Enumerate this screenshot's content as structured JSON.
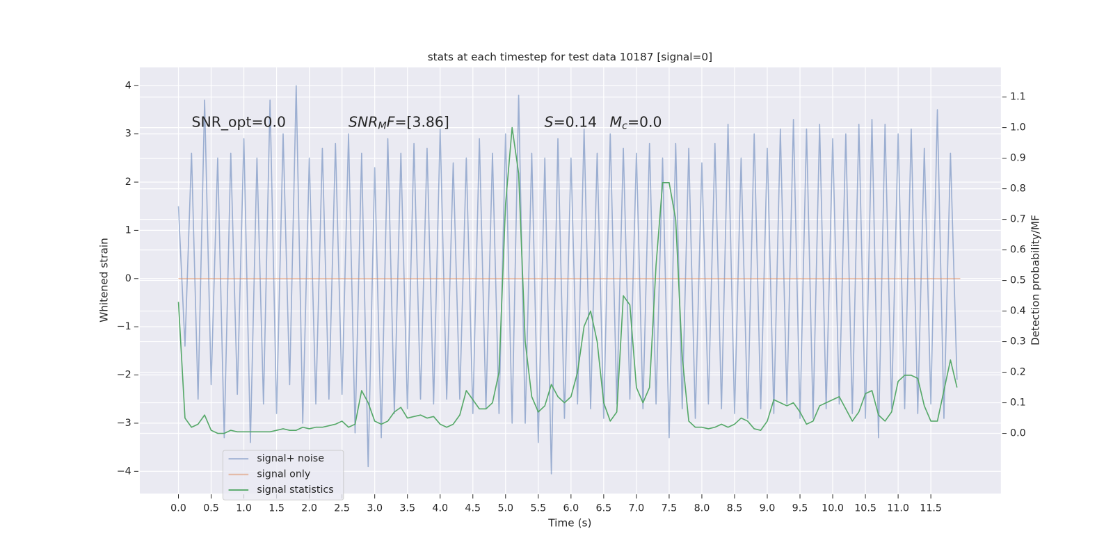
{
  "chart_data": {
    "type": "line",
    "title": "stats at each timestep for test data 10187 [signal=0]",
    "xlabel": "Time (s)",
    "ylabel": "Whitened strain",
    "y2label": "Detection probability/MF",
    "annotations": [
      [
        "SNR_opt=0.0"
      ],
      [
        "SNR",
        "M",
        "F",
        "=[3.86]"
      ],
      [
        "S",
        "=0.14"
      ],
      [
        "M",
        "c",
        "=0.0"
      ]
    ],
    "xlim": [
      -0.59,
      12.57
    ],
    "ylim": [
      -4.46,
      4.38
    ],
    "y2lim": [
      -0.197,
      1.197
    ],
    "xticks": [
      {
        "value": 0,
        "label": "0.0"
      },
      0.5,
      {
        "value": 1,
        "label": "1.0"
      },
      1.5,
      {
        "value": 2,
        "label": "2.0"
      },
      2.5,
      {
        "value": 3,
        "label": "3.0"
      },
      3.5,
      {
        "value": 4,
        "label": "4.0"
      },
      4.5,
      {
        "value": 5,
        "label": "5.0"
      },
      5.5,
      {
        "value": 6,
        "label": "6.0"
      },
      6.5,
      {
        "value": 7,
        "label": "7.0"
      },
      7.5,
      {
        "value": 8,
        "label": "8.0"
      },
      8.5,
      {
        "value": 9,
        "label": "9.0"
      },
      9.5,
      {
        "value": 10,
        "label": "10.0"
      },
      10.5,
      {
        "value": 11,
        "label": "11.0"
      },
      11.5
    ],
    "yticks": [
      {
        "value": -4,
        "label": "−4"
      },
      {
        "value": -3,
        "label": "−3"
      },
      {
        "value": -2,
        "label": "−2"
      },
      {
        "value": -1,
        "label": "−1"
      },
      0,
      1,
      2,
      3,
      4
    ],
    "y2ticks": [
      {
        "value": 0,
        "label": "0.0"
      },
      0.1,
      0.2,
      0.3,
      0.4,
      0.5,
      0.6,
      0.7,
      0.8,
      0.9,
      {
        "value": 1,
        "label": "1.0"
      },
      1.1
    ],
    "grid": true,
    "legend": "lower left",
    "series": [
      {
        "name": "signal+ noise",
        "color": "#4c72b0",
        "alpha": 0.5,
        "x": [
          0,
          0.1,
          0.2,
          0.3,
          0.4,
          0.5,
          0.6,
          0.7,
          0.8,
          0.9,
          1,
          1.1,
          1.2,
          1.3,
          1.4,
          1.5,
          1.6,
          1.7,
          1.8,
          1.9,
          2,
          2.1,
          2.2,
          2.3,
          2.4,
          2.5,
          2.6,
          2.7,
          2.8,
          2.9,
          3,
          3.1,
          3.2,
          3.3,
          3.4,
          3.5,
          3.6,
          3.7,
          3.8,
          3.9,
          4,
          4.1,
          4.2,
          4.3,
          4.4,
          4.5,
          4.6,
          4.7,
          4.8,
          4.9,
          5,
          5.1,
          5.2,
          5.3,
          5.4,
          5.5,
          5.6,
          5.7,
          5.8,
          5.9,
          6,
          6.1,
          6.2,
          6.3,
          6.4,
          6.5,
          6.6,
          6.7,
          6.8,
          6.9,
          7,
          7.1,
          7.2,
          7.3,
          7.4,
          7.5,
          7.6,
          7.7,
          7.8,
          7.9,
          8,
          8.1,
          8.2,
          8.3,
          8.4,
          8.5,
          8.6,
          8.7,
          8.8,
          8.9,
          9,
          9.1,
          9.2,
          9.3,
          9.4,
          9.5,
          9.6,
          9.7,
          9.8,
          9.9,
          10,
          10.1,
          10.2,
          10.3,
          10.4,
          10.5,
          10.6,
          10.7,
          10.8,
          10.9,
          11,
          11.1,
          11.2,
          11.3,
          11.4,
          11.5,
          11.6,
          11.7,
          11.8,
          11.9
        ],
        "values": [
          1.5,
          -1.4,
          2.6,
          -2.5,
          3.7,
          -2.2,
          2.5,
          -3.3,
          2.6,
          -2.4,
          2.9,
          -3.4,
          2.5,
          -2.6,
          3.7,
          -2.8,
          3.0,
          -2.2,
          4.0,
          -3.0,
          2.5,
          -2.6,
          2.7,
          -2.5,
          2.8,
          -2.4,
          3.0,
          -3.2,
          2.6,
          -3.9,
          2.3,
          -3.3,
          2.9,
          -2.8,
          2.6,
          -2.7,
          2.8,
          -2.5,
          2.7,
          -2.6,
          3.1,
          -2.5,
          2.4,
          -2.5,
          2.5,
          -2.8,
          2.9,
          -2.7,
          2.6,
          -2.8,
          3.0,
          -3.0,
          3.8,
          -3.0,
          2.6,
          -3.4,
          2.5,
          -4.05,
          2.9,
          -2.9,
          2.5,
          -2.6,
          3.1,
          -2.7,
          2.6,
          -2.9,
          3.0,
          -2.6,
          2.7,
          -2.5,
          2.6,
          -2.7,
          2.8,
          -2.6,
          2.5,
          -3.3,
          2.8,
          -2.7,
          2.7,
          -2.9,
          2.4,
          -2.6,
          2.8,
          -2.7,
          3.2,
          -2.8,
          2.5,
          -2.9,
          3.0,
          -2.7,
          2.7,
          -2.8,
          3.1,
          -2.6,
          3.3,
          -2.9,
          3.1,
          -2.9,
          3.2,
          -2.7,
          2.9,
          -2.6,
          3.0,
          -2.8,
          3.2,
          -2.9,
          3.3,
          -3.3,
          3.2,
          -2.7,
          3.0,
          -2.7,
          3.1,
          -2.8,
          2.7,
          -2.6,
          3.5,
          -2.9,
          2.6,
          -2.1
        ]
      },
      {
        "name": "signal only",
        "color": "#dd8452",
        "alpha": 0.5,
        "x": [
          0,
          11.95
        ],
        "values": [
          0,
          0
        ]
      },
      {
        "name": "signal statistics",
        "color": "#55a868",
        "axis": "y2",
        "x": [
          0,
          0.1,
          0.2,
          0.3,
          0.4,
          0.5,
          0.6,
          0.7,
          0.8,
          0.9,
          1,
          1.1,
          1.2,
          1.3,
          1.4,
          1.5,
          1.6,
          1.7,
          1.8,
          1.9,
          2,
          2.1,
          2.2,
          2.3,
          2.4,
          2.5,
          2.6,
          2.7,
          2.8,
          2.9,
          3,
          3.1,
          3.2,
          3.3,
          3.4,
          3.5,
          3.6,
          3.7,
          3.8,
          3.9,
          4,
          4.1,
          4.2,
          4.3,
          4.4,
          4.5,
          4.6,
          4.7,
          4.8,
          4.9,
          5,
          5.1,
          5.2,
          5.3,
          5.4,
          5.5,
          5.6,
          5.7,
          5.8,
          5.9,
          6,
          6.1,
          6.2,
          6.3,
          6.4,
          6.5,
          6.6,
          6.7,
          6.8,
          6.9,
          7,
          7.1,
          7.2,
          7.3,
          7.4,
          7.5,
          7.6,
          7.7,
          7.8,
          7.9,
          8,
          8.1,
          8.2,
          8.3,
          8.4,
          8.5,
          8.6,
          8.7,
          8.8,
          8.9,
          9,
          9.1,
          9.2,
          9.3,
          9.4,
          9.5,
          9.6,
          9.7,
          9.8,
          9.9,
          10,
          10.1,
          10.2,
          10.3,
          10.4,
          10.5,
          10.6,
          10.7,
          10.8,
          10.9,
          11,
          11.1,
          11.2,
          11.3,
          11.4,
          11.5,
          11.6,
          11.7,
          11.8,
          11.9
        ],
        "values": [
          0.43,
          0.05,
          0.02,
          0.03,
          0.06,
          0.01,
          0.0,
          0.0,
          0.01,
          0.005,
          0.005,
          0.005,
          0.005,
          0.005,
          0.005,
          0.01,
          0.015,
          0.01,
          0.01,
          0.02,
          0.015,
          0.02,
          0.02,
          0.025,
          0.03,
          0.04,
          0.02,
          0.03,
          0.14,
          0.1,
          0.04,
          0.03,
          0.04,
          0.07,
          0.085,
          0.05,
          0.055,
          0.06,
          0.05,
          0.055,
          0.03,
          0.02,
          0.03,
          0.06,
          0.14,
          0.11,
          0.08,
          0.08,
          0.1,
          0.2,
          0.75,
          1.0,
          0.85,
          0.3,
          0.12,
          0.07,
          0.09,
          0.16,
          0.12,
          0.1,
          0.12,
          0.2,
          0.35,
          0.4,
          0.3,
          0.1,
          0.04,
          0.07,
          0.45,
          0.42,
          0.15,
          0.1,
          0.15,
          0.55,
          0.82,
          0.82,
          0.7,
          0.25,
          0.04,
          0.02,
          0.02,
          0.015,
          0.02,
          0.03,
          0.02,
          0.03,
          0.05,
          0.04,
          0.015,
          0.01,
          0.04,
          0.11,
          0.1,
          0.09,
          0.1,
          0.07,
          0.03,
          0.04,
          0.09,
          0.1,
          0.11,
          0.12,
          0.08,
          0.04,
          0.07,
          0.13,
          0.14,
          0.06,
          0.04,
          0.07,
          0.17,
          0.19,
          0.19,
          0.18,
          0.09,
          0.04,
          0.04,
          0.14,
          0.24,
          0.15
        ]
      }
    ]
  }
}
